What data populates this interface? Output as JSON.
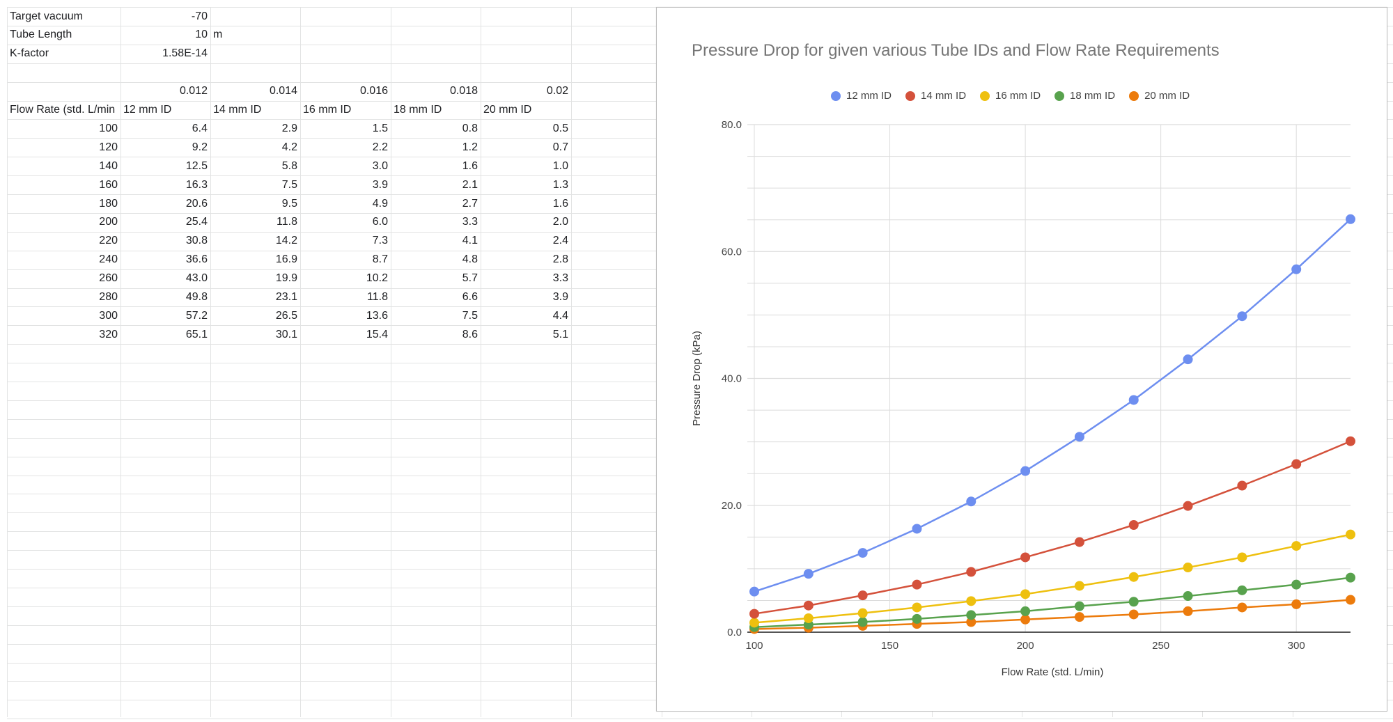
{
  "sheet": {
    "params": [
      {
        "label": "Target vacuum",
        "value": "-70",
        "unit": ""
      },
      {
        "label": "Tube Length",
        "value": "10",
        "unit": "m"
      },
      {
        "label": "K-factor",
        "value": "1.58E-14",
        "unit": ""
      }
    ],
    "diameters_m": [
      "0.012",
      "0.014",
      "0.016",
      "0.018",
      "0.02"
    ],
    "headers": [
      "Flow Rate (std. L/min",
      "12 mm ID",
      "14 mm ID",
      "16 mm ID",
      "18 mm ID",
      "20 mm ID"
    ],
    "rows": [
      [
        "100",
        "6.4",
        "2.9",
        "1.5",
        "0.8",
        "0.5"
      ],
      [
        "120",
        "9.2",
        "4.2",
        "2.2",
        "1.2",
        "0.7"
      ],
      [
        "140",
        "12.5",
        "5.8",
        "3.0",
        "1.6",
        "1.0"
      ],
      [
        "160",
        "16.3",
        "7.5",
        "3.9",
        "2.1",
        "1.3"
      ],
      [
        "180",
        "20.6",
        "9.5",
        "4.9",
        "2.7",
        "1.6"
      ],
      [
        "200",
        "25.4",
        "11.8",
        "6.0",
        "3.3",
        "2.0"
      ],
      [
        "220",
        "30.8",
        "14.2",
        "7.3",
        "4.1",
        "2.4"
      ],
      [
        "240",
        "36.6",
        "16.9",
        "8.7",
        "4.8",
        "2.8"
      ],
      [
        "260",
        "43.0",
        "19.9",
        "10.2",
        "5.7",
        "3.3"
      ],
      [
        "280",
        "49.8",
        "23.1",
        "11.8",
        "6.6",
        "3.9"
      ],
      [
        "300",
        "57.2",
        "26.5",
        "13.6",
        "7.5",
        "4.4"
      ],
      [
        "320",
        "65.1",
        "30.1",
        "15.4",
        "8.6",
        "5.1"
      ]
    ]
  },
  "chart_data": {
    "type": "line",
    "title": "Pressure Drop for given various Tube IDs and Flow Rate Requirements",
    "xlabel": "Flow Rate (std. L/min)",
    "ylabel": "Pressure Drop (kPa)",
    "x": [
      100,
      120,
      140,
      160,
      180,
      200,
      220,
      240,
      260,
      280,
      300,
      320
    ],
    "xlim": [
      100,
      320
    ],
    "ylim": [
      0,
      80
    ],
    "xticks": [
      "100",
      "150",
      "200",
      "250",
      "300"
    ],
    "yticks": [
      "0.0",
      "20.0",
      "40.0",
      "60.0",
      "80.0"
    ],
    "grid": true,
    "legend_position": "top",
    "series": [
      {
        "name": "12 mm ID",
        "color": "#6d8ef0",
        "values": [
          6.4,
          9.2,
          12.5,
          16.3,
          20.6,
          25.4,
          30.8,
          36.6,
          43.0,
          49.8,
          57.2,
          65.1
        ]
      },
      {
        "name": "14 mm ID",
        "color": "#d4513b",
        "values": [
          2.9,
          4.2,
          5.8,
          7.5,
          9.5,
          11.8,
          14.2,
          16.9,
          19.9,
          23.1,
          26.5,
          30.1
        ]
      },
      {
        "name": "16 mm ID",
        "color": "#eec00f",
        "values": [
          1.5,
          2.2,
          3.0,
          3.9,
          4.9,
          6.0,
          7.3,
          8.7,
          10.2,
          11.8,
          13.6,
          15.4
        ]
      },
      {
        "name": "18 mm ID",
        "color": "#58a24d",
        "values": [
          0.8,
          1.2,
          1.6,
          2.1,
          2.7,
          3.3,
          4.1,
          4.8,
          5.7,
          6.6,
          7.5,
          8.6
        ]
      },
      {
        "name": "20 mm ID",
        "color": "#ec7b0c",
        "values": [
          0.5,
          0.7,
          1.0,
          1.3,
          1.6,
          2.0,
          2.4,
          2.8,
          3.3,
          3.9,
          4.4,
          5.1
        ]
      }
    ]
  }
}
